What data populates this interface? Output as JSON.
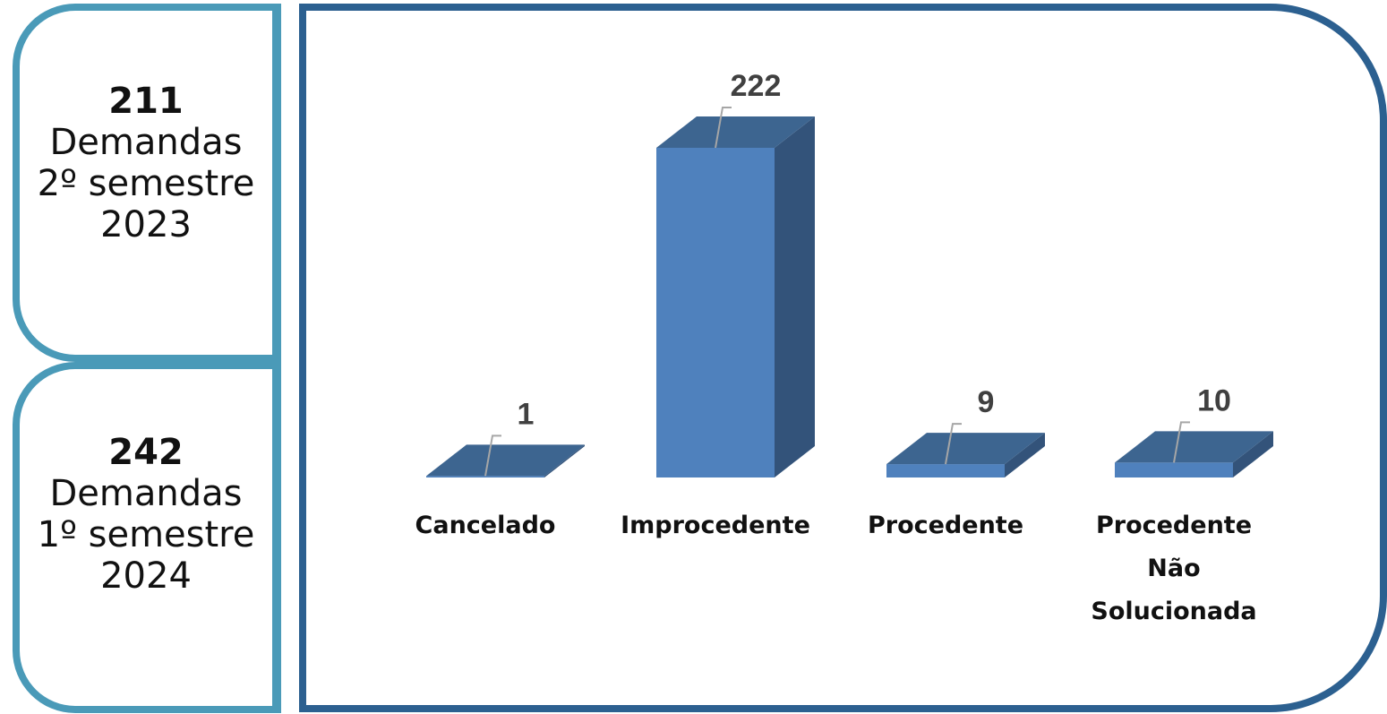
{
  "panels": [
    {
      "count": "211",
      "lines": [
        "Demandas",
        "2º semestre",
        "2023"
      ]
    },
    {
      "count": "242",
      "lines": [
        "Demandas",
        "1º semestre",
        "2024"
      ]
    }
  ],
  "chart_data": {
    "type": "bar",
    "categories": [
      "Cancelado",
      "Improcedente",
      "Procedente",
      "Procedente Não Solucionada"
    ],
    "values": [
      1,
      222,
      9,
      10
    ],
    "color": "#4f81bd"
  }
}
